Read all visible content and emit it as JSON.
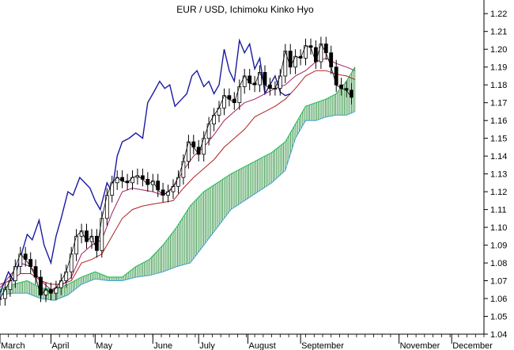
{
  "chart_data": {
    "type": "line",
    "title": "EUR / USD, Ichimoku Kinko Hyo",
    "xlabel": "",
    "ylabel": "",
    "xlim": [
      0,
      28.5
    ],
    "ylim": [
      1.04,
      1.225
    ],
    "y_axis_position": "right",
    "grid": false,
    "legend": "none",
    "x_month_labels": [
      {
        "label": "March",
        "x": 0
      },
      {
        "label": "April",
        "x": 3
      },
      {
        "label": "May",
        "x": 5.6
      },
      {
        "label": "June",
        "x": 9
      },
      {
        "label": "July",
        "x": 11.7
      },
      {
        "label": "August",
        "x": 14.6
      },
      {
        "label": "September",
        "x": 17.7
      },
      {
        "label": "November",
        "x": 23.5
      },
      {
        "label": "December",
        "x": 26.6
      }
    ],
    "y_ticks": [
      1.04,
      1.05,
      1.06,
      1.07,
      1.08,
      1.09,
      1.1,
      1.11,
      1.12,
      1.13,
      1.14,
      1.15,
      1.16,
      1.17,
      1.18,
      1.19,
      1.2,
      1.21,
      1.22
    ],
    "colors": {
      "price": "#000000",
      "chikou": "#1a1aa0",
      "tenkan": "#a02060",
      "kijun": "#b02020",
      "cloud_line": "#30c060",
      "cloud_fill": "#2a8a3a",
      "cloud_edge": "#40a0d0"
    },
    "series": [
      {
        "name": "Price",
        "x": [
          0,
          0.3,
          0.6,
          0.9,
          1.2,
          1.5,
          1.8,
          2.1,
          2.4,
          2.7,
          3.0,
          3.3,
          3.6,
          3.9,
          4.2,
          4.5,
          4.8,
          5.1,
          5.4,
          5.7,
          6.0,
          6.3,
          6.6,
          6.9,
          7.2,
          7.5,
          7.8,
          8.1,
          8.4,
          8.7,
          9.0,
          9.3,
          9.6,
          9.9,
          10.2,
          10.5,
          10.8,
          11.1,
          11.4,
          11.7,
          12.0,
          12.3,
          12.6,
          12.9,
          13.2,
          13.5,
          13.8,
          14.1,
          14.4,
          14.7,
          15.0,
          15.3,
          15.6,
          15.9,
          16.2,
          16.5,
          16.8,
          17.1,
          17.4,
          17.7,
          18.0,
          18.3,
          18.6,
          18.9,
          19.2,
          19.5,
          19.8,
          20.1,
          20.4,
          20.7
        ],
        "values": [
          1.06,
          1.065,
          1.07,
          1.078,
          1.085,
          1.082,
          1.078,
          1.072,
          1.062,
          1.065,
          1.063,
          1.066,
          1.07,
          1.075,
          1.085,
          1.095,
          1.098,
          1.092,
          1.095,
          1.087,
          1.105,
          1.118,
          1.125,
          1.128,
          1.126,
          1.125,
          1.128,
          1.129,
          1.127,
          1.124,
          1.126,
          1.121,
          1.118,
          1.12,
          1.123,
          1.128,
          1.137,
          1.148,
          1.145,
          1.141,
          1.15,
          1.158,
          1.163,
          1.167,
          1.174,
          1.172,
          1.17,
          1.179,
          1.185,
          1.181,
          1.18,
          1.187,
          1.18,
          1.178,
          1.178,
          1.185,
          1.199,
          1.19,
          1.196,
          1.195,
          1.202,
          1.201,
          1.193,
          1.203,
          1.198,
          1.19,
          1.18,
          1.178,
          1.177,
          1.173
        ]
      },
      {
        "name": "Chikou Span",
        "x": [
          0,
          0.5,
          0.8,
          1.2,
          1.6,
          1.9,
          2.3,
          2.6,
          3.0,
          3.3,
          3.6,
          4.0,
          4.3,
          4.7,
          5.0,
          5.3,
          5.6,
          5.9,
          6.3,
          6.6,
          6.9,
          7.2,
          7.6,
          8.0,
          8.4,
          8.7,
          9.0,
          9.4,
          9.7,
          10.0,
          10.3,
          10.7,
          11.0,
          11.3,
          11.6,
          12.0,
          12.3,
          12.6,
          12.9,
          13.2,
          13.5,
          13.8,
          14.1,
          14.4,
          14.7,
          15.0,
          15.3,
          15.6,
          15.9,
          16.2,
          16.5,
          16.8,
          17.1
        ],
        "values": [
          1.063,
          1.075,
          1.07,
          1.083,
          1.096,
          1.093,
          1.104,
          1.09,
          1.08,
          1.095,
          1.105,
          1.12,
          1.118,
          1.128,
          1.125,
          1.122,
          1.115,
          1.11,
          1.125,
          1.12,
          1.14,
          1.148,
          1.15,
          1.153,
          1.15,
          1.17,
          1.175,
          1.182,
          1.178,
          1.18,
          1.168,
          1.172,
          1.175,
          1.185,
          1.188,
          1.179,
          1.182,
          1.175,
          1.18,
          1.2,
          1.188,
          1.182,
          1.205,
          1.198,
          1.203,
          1.189,
          1.195,
          1.175,
          1.18,
          1.185,
          1.176,
          1.174,
          1.175
        ]
      },
      {
        "name": "Tenkan-sen",
        "x": [
          0,
          0.6,
          1.2,
          1.8,
          2.4,
          3.0,
          3.6,
          4.2,
          4.8,
          5.4,
          6.0,
          6.6,
          7.2,
          7.8,
          8.4,
          9.0,
          9.6,
          10.2,
          10.8,
          11.4,
          12.0,
          12.6,
          13.2,
          13.8,
          14.4,
          15.0,
          15.6,
          16.2,
          16.8,
          17.4,
          18.0,
          18.6,
          19.2,
          19.8,
          20.4,
          20.9
        ],
        "values": [
          1.066,
          1.073,
          1.08,
          1.078,
          1.07,
          1.065,
          1.067,
          1.072,
          1.085,
          1.09,
          1.093,
          1.108,
          1.12,
          1.122,
          1.121,
          1.12,
          1.118,
          1.122,
          1.132,
          1.14,
          1.145,
          1.152,
          1.16,
          1.165,
          1.17,
          1.172,
          1.175,
          1.178,
          1.18,
          1.185,
          1.188,
          1.193,
          1.195,
          1.192,
          1.19,
          1.188
        ]
      },
      {
        "name": "Kijun-sen",
        "x": [
          0,
          0.6,
          1.2,
          1.8,
          2.4,
          3.0,
          3.6,
          4.2,
          4.8,
          5.4,
          6.0,
          6.6,
          7.2,
          7.8,
          8.4,
          9.0,
          9.6,
          10.2,
          10.8,
          11.4,
          12.0,
          12.6,
          13.2,
          13.8,
          14.4,
          15.0,
          15.6,
          16.2,
          16.8,
          17.4,
          18.0,
          18.6,
          19.2,
          19.8,
          20.4,
          20.9
        ],
        "values": [
          1.068,
          1.07,
          1.074,
          1.074,
          1.07,
          1.068,
          1.068,
          1.07,
          1.08,
          1.082,
          1.085,
          1.095,
          1.105,
          1.11,
          1.112,
          1.113,
          1.114,
          1.115,
          1.122,
          1.128,
          1.133,
          1.138,
          1.145,
          1.15,
          1.155,
          1.162,
          1.165,
          1.168,
          1.172,
          1.178,
          1.185,
          1.188,
          1.188,
          1.186,
          1.185,
          1.183
        ]
      },
      {
        "name": "Senkou Span A",
        "x": [
          0,
          0.8,
          1.6,
          2.4,
          3.2,
          4.0,
          4.8,
          5.6,
          6.4,
          7.2,
          8.0,
          8.8,
          9.6,
          10.4,
          11.2,
          12.0,
          12.8,
          13.6,
          14.4,
          15.2,
          16.0,
          16.8,
          17.4,
          18.0,
          18.6,
          19.2,
          19.8,
          20.4,
          20.9
        ],
        "values": [
          1.065,
          1.068,
          1.07,
          1.066,
          1.065,
          1.068,
          1.072,
          1.075,
          1.072,
          1.072,
          1.078,
          1.082,
          1.09,
          1.1,
          1.112,
          1.12,
          1.125,
          1.13,
          1.134,
          1.138,
          1.142,
          1.148,
          1.158,
          1.168,
          1.17,
          1.172,
          1.175,
          1.182,
          1.19
        ]
      },
      {
        "name": "Senkou Span B",
        "x": [
          0,
          0.8,
          1.6,
          2.4,
          3.2,
          4.0,
          4.8,
          5.6,
          6.4,
          7.2,
          8.0,
          8.8,
          9.6,
          10.4,
          11.2,
          12.0,
          12.8,
          13.6,
          14.4,
          15.2,
          16.0,
          16.8,
          17.4,
          18.0,
          18.6,
          19.2,
          19.8,
          20.4,
          20.9
        ],
        "values": [
          1.062,
          1.063,
          1.063,
          1.06,
          1.059,
          1.062,
          1.068,
          1.071,
          1.07,
          1.07,
          1.072,
          1.073,
          1.075,
          1.078,
          1.08,
          1.09,
          1.1,
          1.11,
          1.115,
          1.12,
          1.125,
          1.132,
          1.15,
          1.16,
          1.16,
          1.162,
          1.163,
          1.163,
          1.165
        ]
      }
    ]
  }
}
